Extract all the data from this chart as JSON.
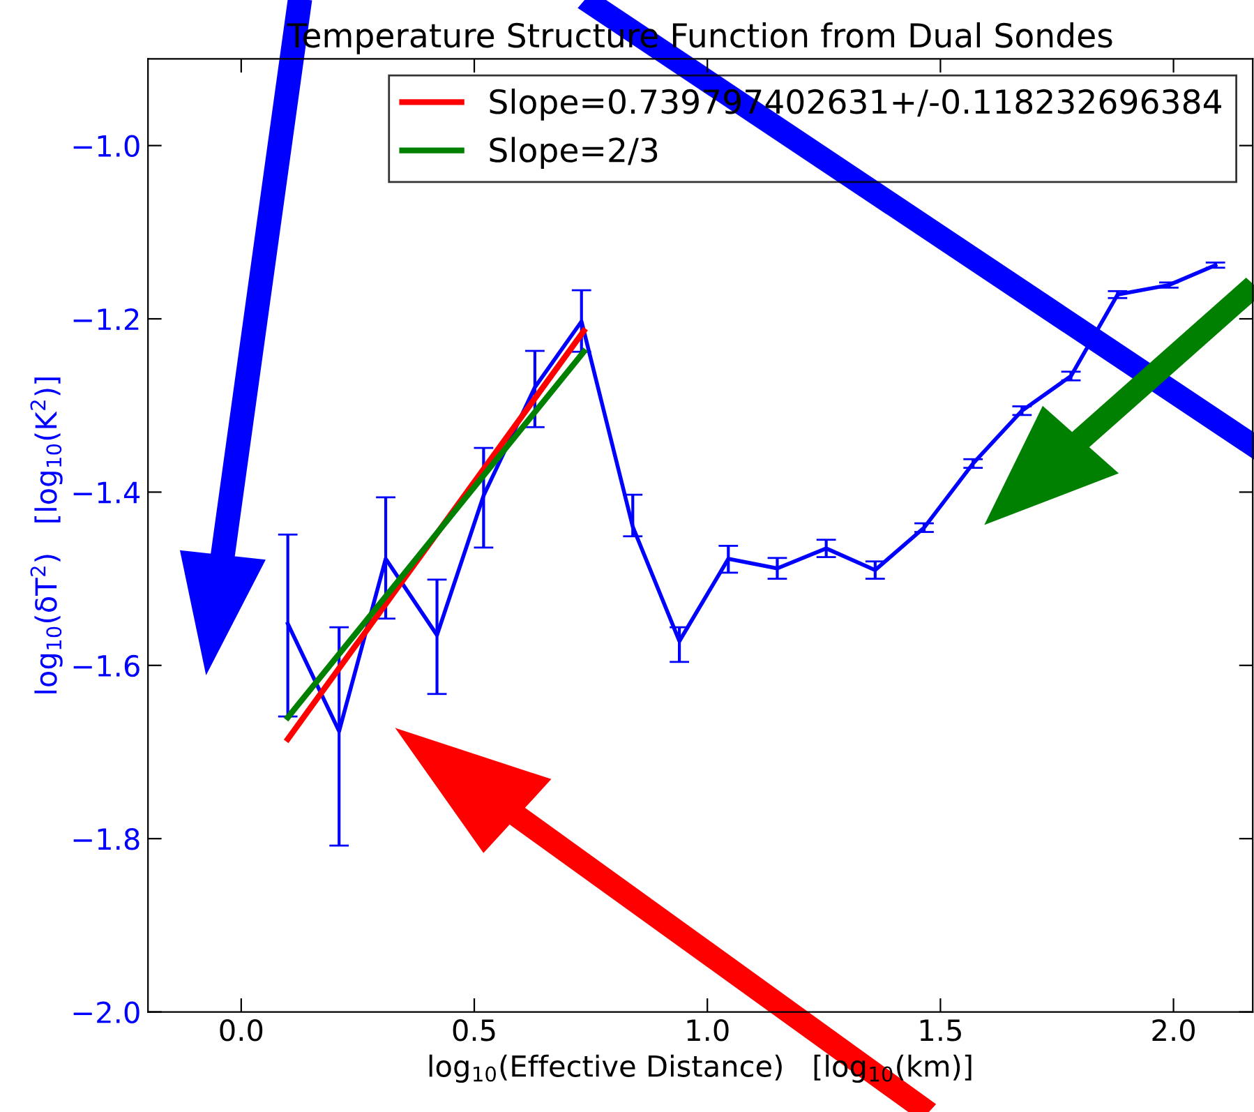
{
  "chart_data": {
    "type": "line",
    "title": "Temperature Structure Function from Dual Sondes",
    "xlabel": "log$_{10}$(Effective Distance)   [log$_{10}$(km)]",
    "ylabel": "log$_{10}$(δT$^{2}$)   [log$_{10}$(K$^{2}$)]",
    "xlim": [
      -0.2,
      2.17
    ],
    "ylim": [
      -2.0,
      -0.9
    ],
    "xticks": [
      {
        "value": 0.0,
        "label": "0.0"
      },
      {
        "value": 0.5,
        "label": "0.5"
      },
      {
        "value": 1.0,
        "label": "1.0"
      },
      {
        "value": 1.5,
        "label": "1.5"
      },
      {
        "value": 2.0,
        "label": "2.0"
      }
    ],
    "yticks": [
      {
        "value": -2.0,
        "label": "−2.0"
      },
      {
        "value": -1.8,
        "label": "−1.8"
      },
      {
        "value": -1.6,
        "label": "−1.6"
      },
      {
        "value": -1.4,
        "label": "−1.4"
      },
      {
        "value": -1.2,
        "label": "−1.2"
      },
      {
        "value": -1.0,
        "label": "−1.0"
      }
    ],
    "grid": false,
    "legend": "top right",
    "marker": "none",
    "line_style": "solid",
    "series": [
      {
        "color": "#0000ff",
        "x": [
          0.1,
          0.21,
          0.31,
          0.42,
          0.52,
          0.63,
          0.73,
          0.84,
          0.94,
          1.045,
          1.15,
          1.255,
          1.36,
          1.465,
          1.57,
          1.675,
          1.78,
          1.88,
          1.99,
          2.09
        ],
        "values": [
          -1.552,
          -1.676,
          -1.477,
          -1.565,
          -1.404,
          -1.279,
          -1.203,
          -1.44,
          -1.572,
          -1.477,
          -1.488,
          -1.465,
          -1.49,
          -1.441,
          -1.367,
          -1.306,
          -1.266,
          -1.172,
          -1.161,
          -1.138
        ],
        "errors": [
          [
            -1.659,
            -1.449
          ],
          [
            -1.808,
            -1.556
          ],
          [
            -1.546,
            -1.406
          ],
          [
            -1.633,
            -1.501
          ],
          [
            -1.464,
            -1.349
          ],
          [
            -1.325,
            -1.237
          ],
          [
            -1.238,
            -1.167
          ],
          [
            -1.451,
            -1.403
          ],
          [
            -1.596,
            -1.556
          ],
          [
            -1.493,
            -1.462
          ],
          [
            -1.5,
            -1.476
          ],
          [
            -1.475,
            -1.455
          ],
          [
            -1.5,
            -1.48
          ],
          [
            -1.446,
            -1.436
          ],
          [
            -1.372,
            -1.362
          ],
          [
            -1.311,
            -1.301
          ],
          [
            -1.271,
            -1.261
          ],
          [
            -1.176,
            -1.168
          ],
          [
            -1.164,
            -1.158
          ],
          [
            -1.141,
            -1.135
          ]
        ]
      },
      {
        "name": "Slope=0.739797402631+/-0.118232696384",
        "color": "#ff0000",
        "type": "line",
        "x": [
          0.1,
          0.735
        ],
        "values": [
          -1.685,
          -1.214
        ]
      },
      {
        "name": "Slope=2/3",
        "color": "#008000",
        "type": "line",
        "x": [
          0.1,
          0.735
        ],
        "values": [
          -1.66,
          -1.238
        ]
      }
    ]
  }
}
